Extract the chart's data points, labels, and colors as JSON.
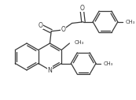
{
  "figsize": [
    1.73,
    1.27
  ],
  "dpi": 100,
  "line_color": "#3a3a3a",
  "line_width": 0.9,
  "font_size": 5.2,
  "xlim": [
    0.0,
    10.0
  ],
  "ylim": [
    0.0,
    7.4
  ]
}
